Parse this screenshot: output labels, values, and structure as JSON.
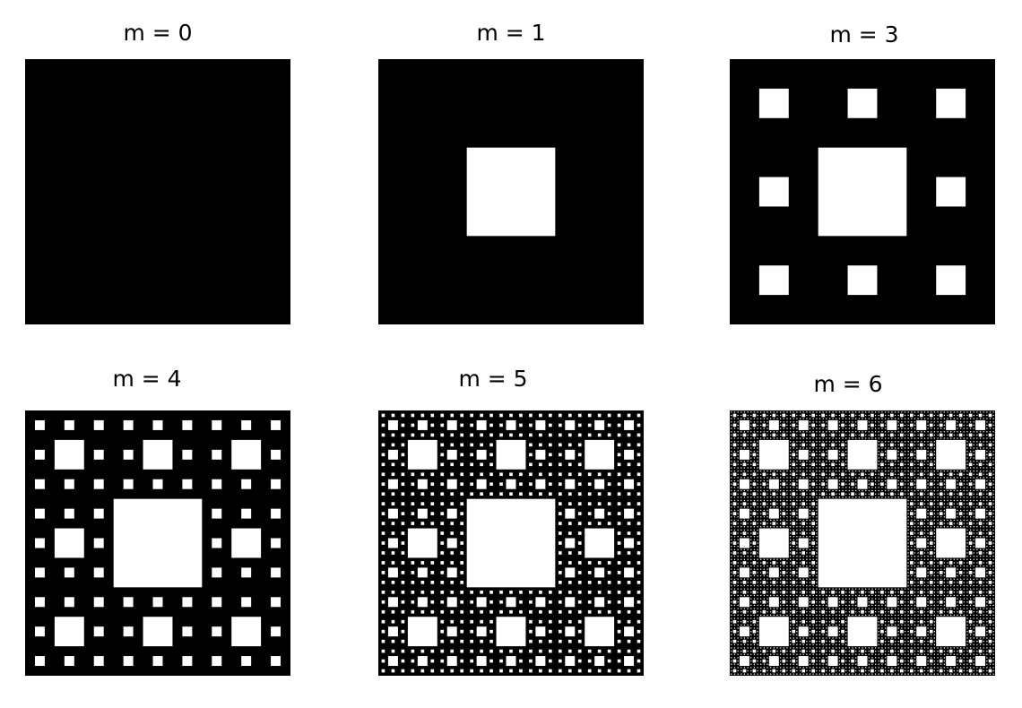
{
  "figure": {
    "background_color": "#ffffff",
    "fill_color": "#000000",
    "hole_color": "#ffffff",
    "panels": [
      {
        "label": "m = 0",
        "level": 0
      },
      {
        "label": "m = 1",
        "level": 1
      },
      {
        "label": "m = 3",
        "level": 2
      },
      {
        "label": "m = 4",
        "level": 3
      },
      {
        "label": "m = 5",
        "level": 4
      },
      {
        "label": "m = 6",
        "level": 5
      }
    ]
  }
}
